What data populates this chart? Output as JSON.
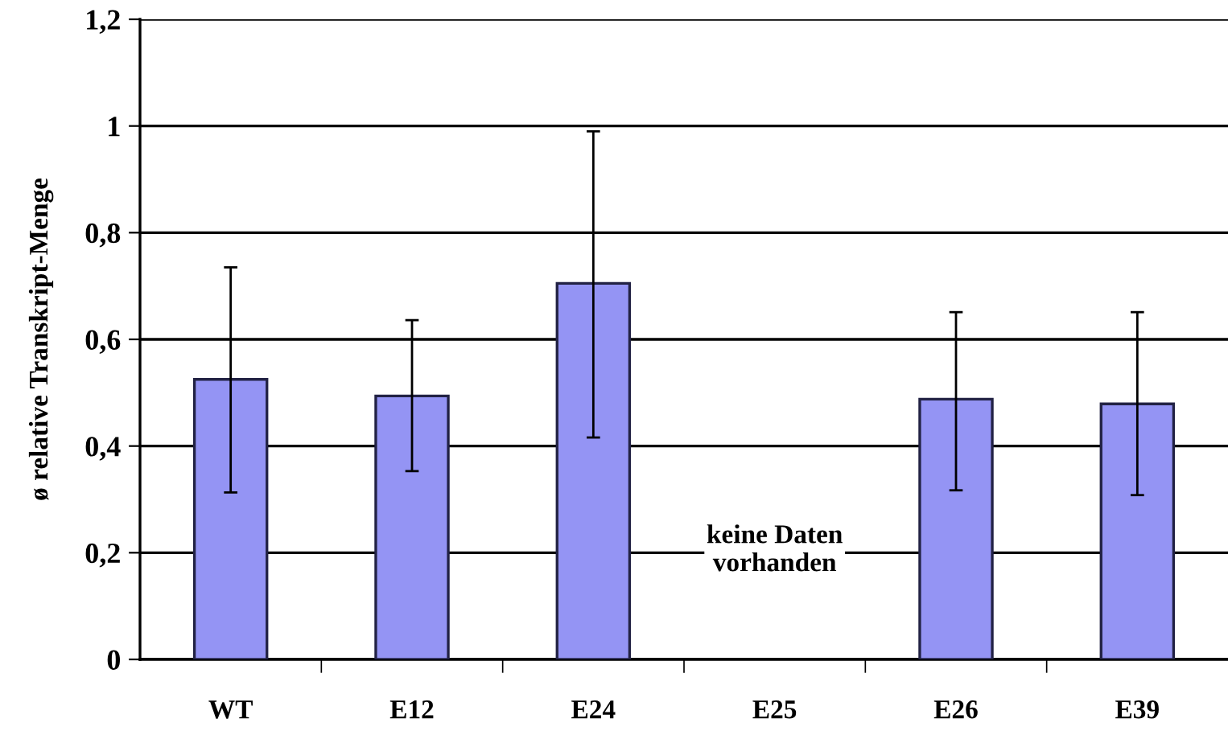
{
  "chart_data": {
    "type": "bar",
    "ylabel": "ø relative Transkript-Menge",
    "categories": [
      "WT",
      "E12",
      "E24",
      "E25",
      "E26",
      "E39"
    ],
    "values": [
      0.525,
      0.494,
      0.705,
      null,
      0.488,
      0.479
    ],
    "errors": [
      [
        0.313,
        0.735
      ],
      [
        0.353,
        0.636
      ],
      [
        0.416,
        0.99
      ],
      null,
      [
        0.317,
        0.651
      ],
      [
        0.308,
        0.651
      ]
    ],
    "color": "#9494f4",
    "ylim": [
      0,
      1.2
    ],
    "yticks": [
      0,
      {
        "value": 0.2,
        "label": "0,2"
      },
      {
        "value": 0.4,
        "label": "0,4"
      },
      {
        "value": 0.6,
        "label": "0,6"
      },
      {
        "value": 0.8,
        "label": "0,8"
      },
      1,
      {
        "value": 1.2,
        "label": "1,2"
      }
    ],
    "grid": "y",
    "annotations": [
      "keine Daten\nvorhanden"
    ]
  }
}
